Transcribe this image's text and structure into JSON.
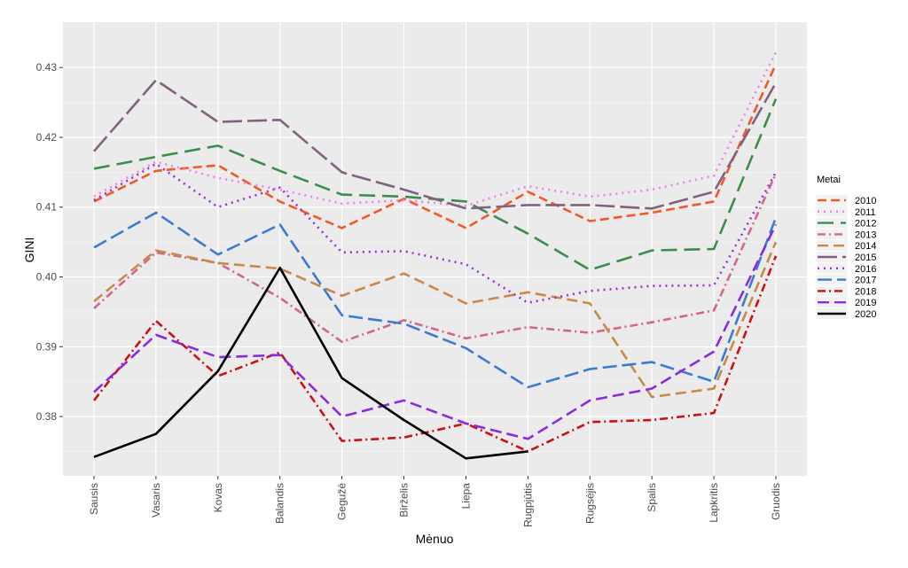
{
  "chart_data": {
    "type": "line",
    "xlabel": "Mėnuo",
    "ylabel": "GINI",
    "categories": [
      "Sausis",
      "Vasaris",
      "Kovas",
      "Balandis",
      "Gegužė",
      "Birželis",
      "Liepa",
      "Rugpjūtis",
      "Rugsėjis",
      "Spalis",
      "Lapkritis",
      "Gruodis"
    ],
    "ylim": [
      0.3715,
      0.4365
    ],
    "yticks": [
      0.38,
      0.39,
      0.4,
      0.41,
      0.42,
      0.43
    ],
    "ytick_labels": [
      "0.38",
      "0.39",
      "0.40",
      "0.41",
      "0.42",
      "0.43"
    ],
    "grid": true,
    "legend": {
      "title": "Metai",
      "position": "right"
    },
    "series": [
      {
        "name": "2010",
        "color": "#f15a24",
        "dash": "10,5",
        "values": [
          0.4108,
          0.4152,
          0.416,
          0.4108,
          0.407,
          0.4112,
          0.407,
          0.4122,
          0.408,
          0.4092,
          0.4108,
          0.4305
        ]
      },
      {
        "name": "2011",
        "color": "#ee82ee",
        "dash": "2,5",
        "values": [
          0.4115,
          0.4165,
          0.4142,
          0.4125,
          0.4105,
          0.411,
          0.4102,
          0.413,
          0.4115,
          0.4125,
          0.4145,
          0.4322
        ]
      },
      {
        "name": "2012",
        "color": "#3c8c4c",
        "dash": "18,8",
        "values": [
          0.4155,
          0.4172,
          0.4188,
          0.4152,
          0.4118,
          0.4115,
          0.4108,
          0.4062,
          0.401,
          0.4038,
          0.404,
          0.4255
        ]
      },
      {
        "name": "2013",
        "color": "#d0678e",
        "dash": "9,4,2,4",
        "values": [
          0.3955,
          0.4035,
          0.402,
          0.397,
          0.3907,
          0.3938,
          0.3912,
          0.3928,
          0.392,
          0.3935,
          0.3952,
          0.4148
        ]
      },
      {
        "name": "2014",
        "color": "#c98a47",
        "dash": "12,6",
        "values": [
          0.3965,
          0.4038,
          0.402,
          0.4012,
          0.3973,
          0.4005,
          0.3962,
          0.3978,
          0.3962,
          0.3828,
          0.384,
          0.405
        ]
      },
      {
        "name": "2015",
        "color": "#82617f",
        "dash": "22,6",
        "values": [
          0.418,
          0.4282,
          0.4222,
          0.4225,
          0.415,
          0.4125,
          0.4098,
          0.4103,
          0.4103,
          0.4098,
          0.4122,
          0.4278
        ]
      },
      {
        "name": "2016",
        "color": "#9b30d9",
        "dash": "2,5",
        "values": [
          0.411,
          0.4162,
          0.41,
          0.4128,
          0.4035,
          0.4037,
          0.4018,
          0.3963,
          0.398,
          0.3987,
          0.3988,
          0.415
        ]
      },
      {
        "name": "2017",
        "color": "#3a7bd5",
        "dash": "16,6",
        "values": [
          0.4042,
          0.4092,
          0.4032,
          0.4075,
          0.3945,
          0.3933,
          0.3898,
          0.3842,
          0.3868,
          0.3878,
          0.385,
          0.4085
        ]
      },
      {
        "name": "2018",
        "color": "#cc1111",
        "dash": "9,4,2,4",
        "values": [
          0.3823,
          0.3937,
          0.3858,
          0.3892,
          0.3765,
          0.377,
          0.379,
          0.375,
          0.3792,
          0.3795,
          0.3805,
          0.403
        ]
      },
      {
        "name": "2019",
        "color": "#8a2be2",
        "dash": "13,6",
        "values": [
          0.3835,
          0.3917,
          0.3885,
          0.3888,
          0.38,
          0.3823,
          0.379,
          0.3768,
          0.3823,
          0.384,
          0.3893,
          0.4075
        ]
      },
      {
        "name": "2020",
        "color": "#000000",
        "dash": "",
        "values": [
          0.3742,
          0.3775,
          0.3865,
          0.4013,
          0.3855,
          0.3795,
          0.374,
          0.375,
          null,
          null,
          null,
          null
        ]
      }
    ]
  }
}
